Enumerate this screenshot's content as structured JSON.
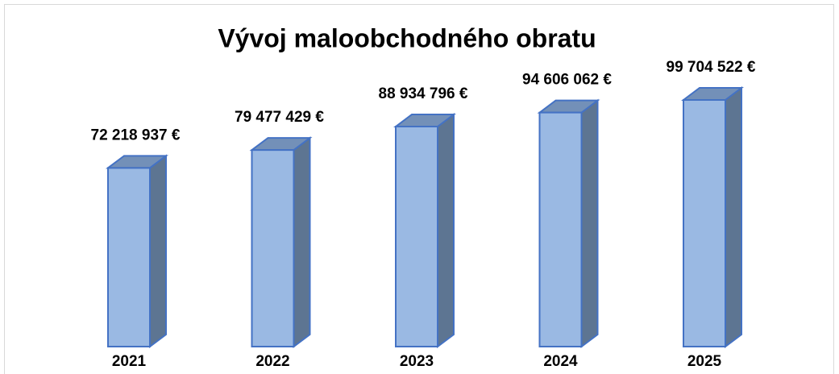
{
  "chart_data": {
    "type": "bar3d",
    "title": "Vývoj maloobchodného obratu",
    "categories": [
      "2021",
      "2022",
      "2023",
      "2024",
      "2025"
    ],
    "values": [
      72218937,
      79477429,
      88934796,
      94606062,
      99704522
    ],
    "value_labels": [
      "72 218 937 €",
      "79 477 429 €",
      "88 934 796 €",
      "94 606 062 €",
      "99 704 522 €"
    ],
    "color": "#9ab9e3"
  }
}
